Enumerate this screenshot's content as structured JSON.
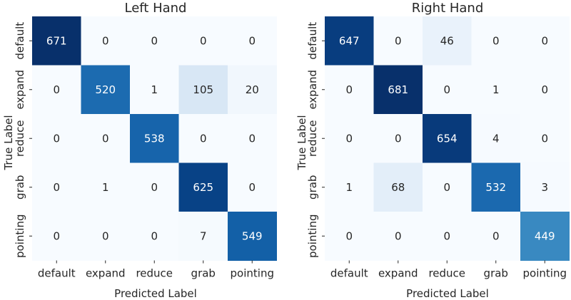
{
  "chart_data": [
    {
      "type": "heatmap",
      "title": "Left Hand",
      "xlabel": "Predicted Label",
      "ylabel": "True Label",
      "categories": [
        "default",
        "expand",
        "reduce",
        "grab",
        "pointing"
      ],
      "values": [
        [
          671,
          0,
          0,
          0,
          0
        ],
        [
          0,
          520,
          1,
          105,
          20
        ],
        [
          0,
          0,
          538,
          0,
          0
        ],
        [
          0,
          1,
          0,
          625,
          0
        ],
        [
          0,
          0,
          0,
          7,
          549
        ]
      ],
      "colormap": "Blues"
    },
    {
      "type": "heatmap",
      "title": "Right Hand",
      "xlabel": "Predicted Label",
      "ylabel": "True Label",
      "categories": [
        "default",
        "expand",
        "reduce",
        "grab",
        "pointing"
      ],
      "values": [
        [
          647,
          0,
          46,
          0,
          0
        ],
        [
          0,
          681,
          0,
          1,
          0
        ],
        [
          0,
          0,
          654,
          4,
          0
        ],
        [
          1,
          68,
          0,
          532,
          3
        ],
        [
          0,
          0,
          0,
          0,
          449
        ]
      ],
      "colormap": "Blues"
    }
  ],
  "colors": {
    "text_dark": "#262626",
    "text_light": "#ffffff"
  }
}
